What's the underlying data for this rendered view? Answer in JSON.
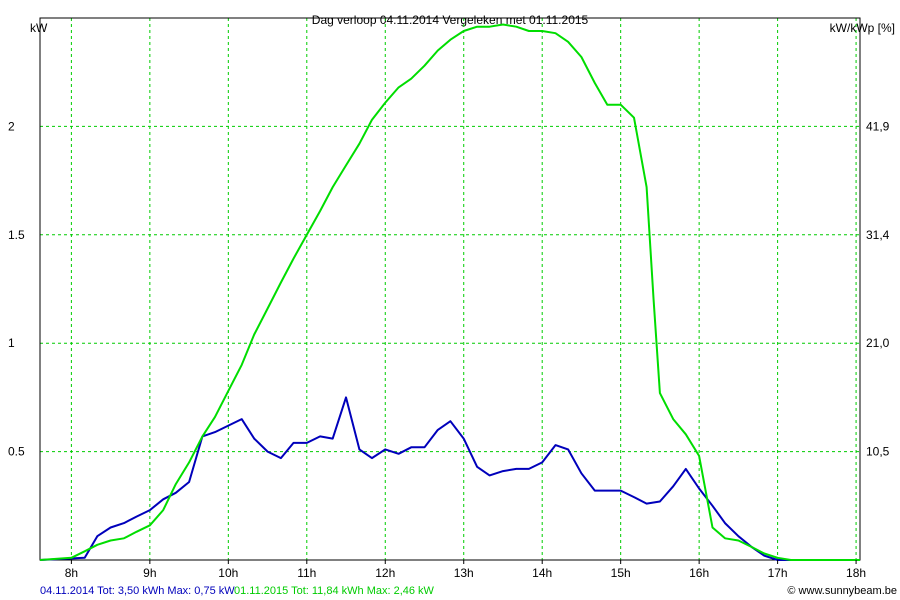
{
  "chart_data": {
    "type": "line",
    "title": "Dag  verloop 04.11.2014   Vergeleken met 01.11.2015",
    "ylabel": "kW",
    "y2label": "kW/kWp [%]",
    "xlabel": "",
    "grid": true,
    "colors": {
      "grid": "#00cc00",
      "axis": "#000000",
      "background": "#ffffff"
    },
    "x_ticks": [
      "8h",
      "9h",
      "10h",
      "11h",
      "12h",
      "13h",
      "14h",
      "15h",
      "16h",
      "17h",
      "18h"
    ],
    "x_range": [
      7.6,
      18.05
    ],
    "ylim": [
      0,
      2.5
    ],
    "y_ticks": [
      {
        "v": 0.5,
        "label": "0.5"
      },
      {
        "v": 1,
        "label": "1"
      },
      {
        "v": 1.5,
        "label": "1.5"
      },
      {
        "v": 2,
        "label": "2"
      }
    ],
    "y2_ticks": [
      {
        "v": 0.5,
        "label": "10,5"
      },
      {
        "v": 1,
        "label": "21,0"
      },
      {
        "v": 1.5,
        "label": "31,4"
      },
      {
        "v": 2,
        "label": "41,9"
      }
    ],
    "series": [
      {
        "name": "04.11.2014",
        "color": "#0000bb",
        "points": [
          [
            7.6,
            0.0
          ],
          [
            8.17,
            0.01
          ],
          [
            8.33,
            0.11
          ],
          [
            8.5,
            0.15
          ],
          [
            8.67,
            0.17
          ],
          [
            8.83,
            0.2
          ],
          [
            9.0,
            0.23
          ],
          [
            9.17,
            0.28
          ],
          [
            9.33,
            0.31
          ],
          [
            9.5,
            0.36
          ],
          [
            9.67,
            0.57
          ],
          [
            9.83,
            0.59
          ],
          [
            10.0,
            0.62
          ],
          [
            10.17,
            0.65
          ],
          [
            10.33,
            0.56
          ],
          [
            10.5,
            0.5
          ],
          [
            10.67,
            0.47
          ],
          [
            10.83,
            0.54
          ],
          [
            11.0,
            0.54
          ],
          [
            11.17,
            0.57
          ],
          [
            11.33,
            0.56
          ],
          [
            11.5,
            0.75
          ],
          [
            11.67,
            0.51
          ],
          [
            11.83,
            0.47
          ],
          [
            12.0,
            0.51
          ],
          [
            12.17,
            0.49
          ],
          [
            12.33,
            0.52
          ],
          [
            12.5,
            0.52
          ],
          [
            12.67,
            0.6
          ],
          [
            12.83,
            0.64
          ],
          [
            13.0,
            0.56
          ],
          [
            13.17,
            0.43
          ],
          [
            13.33,
            0.39
          ],
          [
            13.5,
            0.41
          ],
          [
            13.67,
            0.42
          ],
          [
            13.83,
            0.42
          ],
          [
            14.0,
            0.45
          ],
          [
            14.17,
            0.53
          ],
          [
            14.33,
            0.51
          ],
          [
            14.5,
            0.4
          ],
          [
            14.67,
            0.32
          ],
          [
            14.83,
            0.32
          ],
          [
            15.0,
            0.32
          ],
          [
            15.17,
            0.29
          ],
          [
            15.33,
            0.26
          ],
          [
            15.5,
            0.27
          ],
          [
            15.67,
            0.34
          ],
          [
            15.83,
            0.42
          ],
          [
            16.0,
            0.33
          ],
          [
            16.17,
            0.25
          ],
          [
            16.33,
            0.17
          ],
          [
            16.5,
            0.11
          ],
          [
            16.67,
            0.06
          ],
          [
            16.83,
            0.02
          ],
          [
            17.0,
            0.0
          ],
          [
            18.05,
            0.0
          ]
        ]
      },
      {
        "name": "01.11.2015",
        "color": "#00dd00",
        "points": [
          [
            7.6,
            0.0
          ],
          [
            8.0,
            0.01
          ],
          [
            8.17,
            0.04
          ],
          [
            8.33,
            0.07
          ],
          [
            8.5,
            0.09
          ],
          [
            8.67,
            0.1
          ],
          [
            8.83,
            0.13
          ],
          [
            9.0,
            0.16
          ],
          [
            9.17,
            0.23
          ],
          [
            9.33,
            0.35
          ],
          [
            9.5,
            0.45
          ],
          [
            9.67,
            0.57
          ],
          [
            9.83,
            0.66
          ],
          [
            10.0,
            0.78
          ],
          [
            10.17,
            0.9
          ],
          [
            10.33,
            1.04
          ],
          [
            10.5,
            1.16
          ],
          [
            10.67,
            1.28
          ],
          [
            10.83,
            1.39
          ],
          [
            11.0,
            1.5
          ],
          [
            11.17,
            1.61
          ],
          [
            11.33,
            1.72
          ],
          [
            11.5,
            1.82
          ],
          [
            11.67,
            1.92
          ],
          [
            11.83,
            2.03
          ],
          [
            12.0,
            2.11
          ],
          [
            12.17,
            2.18
          ],
          [
            12.33,
            2.22
          ],
          [
            12.5,
            2.28
          ],
          [
            12.67,
            2.35
          ],
          [
            12.83,
            2.4
          ],
          [
            13.0,
            2.44
          ],
          [
            13.17,
            2.46
          ],
          [
            13.33,
            2.46
          ],
          [
            13.5,
            2.47
          ],
          [
            13.67,
            2.46
          ],
          [
            13.83,
            2.44
          ],
          [
            14.0,
            2.44
          ],
          [
            14.17,
            2.43
          ],
          [
            14.33,
            2.39
          ],
          [
            14.5,
            2.32
          ],
          [
            14.67,
            2.2
          ],
          [
            14.83,
            2.1
          ],
          [
            15.0,
            2.1
          ],
          [
            15.17,
            2.04
          ],
          [
            15.33,
            1.72
          ],
          [
            15.42,
            1.2
          ],
          [
            15.5,
            0.77
          ],
          [
            15.67,
            0.65
          ],
          [
            15.83,
            0.58
          ],
          [
            16.0,
            0.48
          ],
          [
            16.17,
            0.15
          ],
          [
            16.33,
            0.1
          ],
          [
            16.5,
            0.09
          ],
          [
            16.67,
            0.06
          ],
          [
            16.83,
            0.03
          ],
          [
            17.0,
            0.01
          ],
          [
            17.17,
            0.0
          ],
          [
            18.05,
            0.0
          ]
        ]
      }
    ],
    "footer": {
      "series1": "04.11.2014 Tot: 3,50 kWh Max: 0,75 kW",
      "series2": "01.11.2015 Tot: 11,84 kWh Max: 2,46 kW",
      "credit": "© www.sunnybeam.be"
    }
  }
}
